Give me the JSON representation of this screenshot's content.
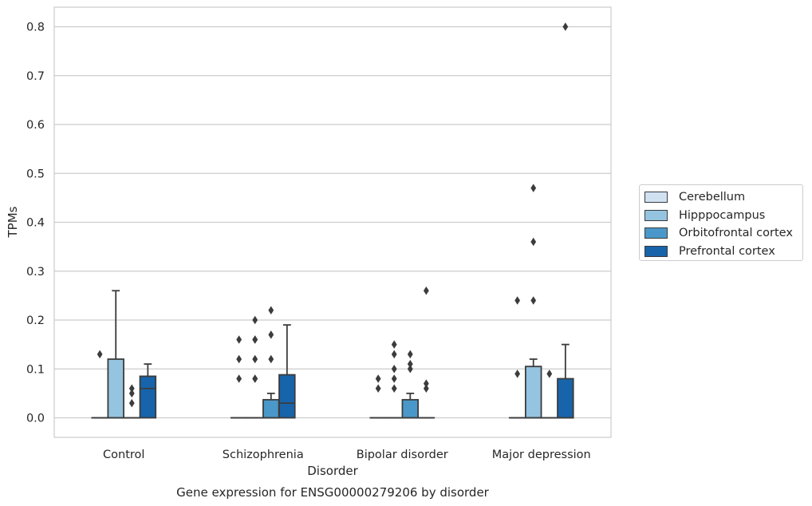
{
  "chart_data": {
    "type": "box",
    "title": "Gene expression for ENSG00000279206 by disorder",
    "xlabel": "Disorder",
    "ylabel": "TPMs",
    "ylim": [
      -0.04,
      0.84
    ],
    "yticks": [
      0.0,
      0.1,
      0.2,
      0.3,
      0.4,
      0.5,
      0.6,
      0.7,
      0.8
    ],
    "grid": true,
    "legend_position": "right",
    "categories": [
      "Control",
      "Schizophrenia",
      "Bipolar disorder",
      "Major depression"
    ],
    "series": [
      {
        "name": "Cerebellum",
        "color": "#d0e1f2",
        "boxes": [
          {
            "q1": 0,
            "median": 0,
            "q3": 0,
            "whisker_low": 0,
            "whisker_high": 0,
            "outliers": []
          },
          {
            "q1": 0,
            "median": 0,
            "q3": 0,
            "whisker_low": 0,
            "whisker_high": 0,
            "outliers": []
          },
          {
            "q1": 0,
            "median": 0,
            "q3": 0,
            "whisker_low": 0,
            "whisker_high": 0,
            "outliers": []
          },
          {
            "q1": 0,
            "median": 0,
            "q3": 0,
            "whisker_low": 0,
            "whisker_high": 0,
            "outliers": []
          }
        ]
      },
      {
        "name": "Hipppocampus",
        "color": "#94c4df",
        "boxes": [
          {
            "q1": 0,
            "median": 0,
            "q3": 0.12,
            "whisker_low": 0,
            "whisker_high": 0.26,
            "outliers": []
          },
          {
            "q1": 0,
            "median": 0,
            "q3": 0,
            "whisker_low": 0,
            "whisker_high": 0,
            "outliers": [
              0.08,
              0.12,
              0.16
            ]
          },
          {
            "q1": 0,
            "median": 0,
            "q3": 0,
            "whisker_low": 0,
            "whisker_high": 0,
            "outliers": [
              0.06,
              0.08
            ]
          },
          {
            "q1": 0,
            "median": 0,
            "q3": 0.105,
            "whisker_low": 0,
            "whisker_high": 0.12,
            "outliers": [
              0.24,
              0.36,
              0.47
            ]
          }
        ]
      },
      {
        "name": "Orbitofrontal cortex",
        "color": "#4a98c9",
        "boxes": [
          {
            "q1": 0,
            "median": 0,
            "q3": 0,
            "whisker_low": 0,
            "whisker_high": 0,
            "outliers": [
              0.03,
              0.05,
              0.06
            ]
          },
          {
            "q1": 0,
            "median": 0,
            "q3": 0.037,
            "whisker_low": 0,
            "whisker_high": 0.05,
            "outliers": [
              0.12,
              0.17,
              0.22
            ]
          },
          {
            "q1": 0,
            "median": 0,
            "q3": 0.037,
            "whisker_low": 0,
            "whisker_high": 0.05,
            "outliers": [
              0.1,
              0.11,
              0.13
            ]
          },
          {
            "q1": 0,
            "median": 0,
            "q3": 0,
            "whisker_low": 0,
            "whisker_high": 0,
            "outliers": [
              0.09
            ]
          }
        ]
      },
      {
        "name": "Prefrontal cortex",
        "color": "#1764ab",
        "boxes": [
          {
            "q1": 0,
            "median": 0.06,
            "q3": 0.085,
            "whisker_low": 0,
            "whisker_high": 0.11,
            "outliers": []
          },
          {
            "q1": 0,
            "median": 0.03,
            "q3": 0.088,
            "whisker_low": 0,
            "whisker_high": 0.19,
            "outliers": []
          },
          {
            "q1": 0,
            "median": 0,
            "q3": 0,
            "whisker_low": 0,
            "whisker_high": 0,
            "outliers": [
              0.06,
              0.07,
              0.26
            ]
          },
          {
            "q1": 0,
            "median": 0,
            "q3": 0.08,
            "whisker_low": 0,
            "whisker_high": 0.15,
            "outliers": [
              0.8
            ]
          }
        ]
      }
    ],
    "extra_outliers": [
      {
        "category": "Control",
        "series": "Cerebellum",
        "values": [
          0.13
        ]
      },
      {
        "category": "Schizophrenia",
        "series": "Cerebellum",
        "values": [
          0.08,
          0.12,
          0.16
        ]
      },
      {
        "category": "Schizophrenia",
        "series": "Hipppocampus",
        "values": [
          0.08,
          0.16,
          0.2
        ]
      },
      {
        "category": "Bipolar disorder",
        "series": "Hipppocampus",
        "values": [
          0.1,
          0.13,
          0.15
        ]
      },
      {
        "category": "Bipolar disorder",
        "series": "Cerebellum",
        "values": [
          0.06,
          0.08
        ]
      },
      {
        "category": "Major depression",
        "series": "Cerebellum",
        "values": [
          0.09,
          0.24
        ]
      }
    ]
  }
}
